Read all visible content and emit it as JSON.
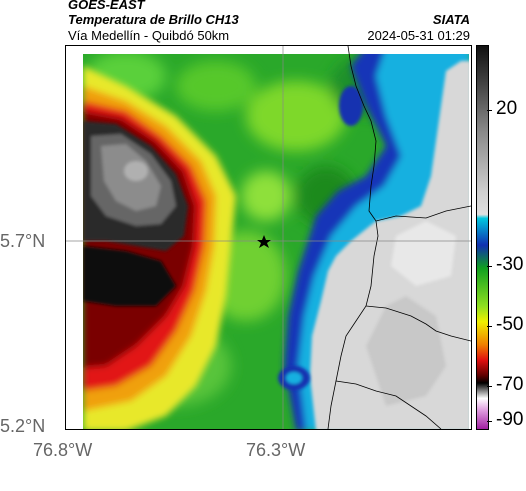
{
  "header": {
    "satellite": "GOES-EAST",
    "product": "Temperatura de Brillo CH13",
    "route": "Vía Medellín - Quibdó 50km",
    "brand": "SIATA",
    "datetime": "2024-05-31 01:29"
  },
  "map": {
    "lat_labels": [
      "5.7°N",
      "5.2°N"
    ],
    "lon_labels": [
      "76.8°W",
      "76.3°W"
    ],
    "marker": "star-marker"
  },
  "colorbar": {
    "ticks": [
      "20",
      "-30",
      "-50",
      "-70",
      "-90"
    ],
    "colors": {
      "top": "#111111",
      "gray": "#cccccc",
      "cyan": "#00c8e0",
      "blue": "#1030b0",
      "green": "#10a020",
      "lime": "#90e020",
      "yellow": "#f0f000",
      "orange": "#f08000",
      "red": "#e01010",
      "darkred": "#600000",
      "black": "#000000",
      "magenta": "#c040c0"
    }
  }
}
